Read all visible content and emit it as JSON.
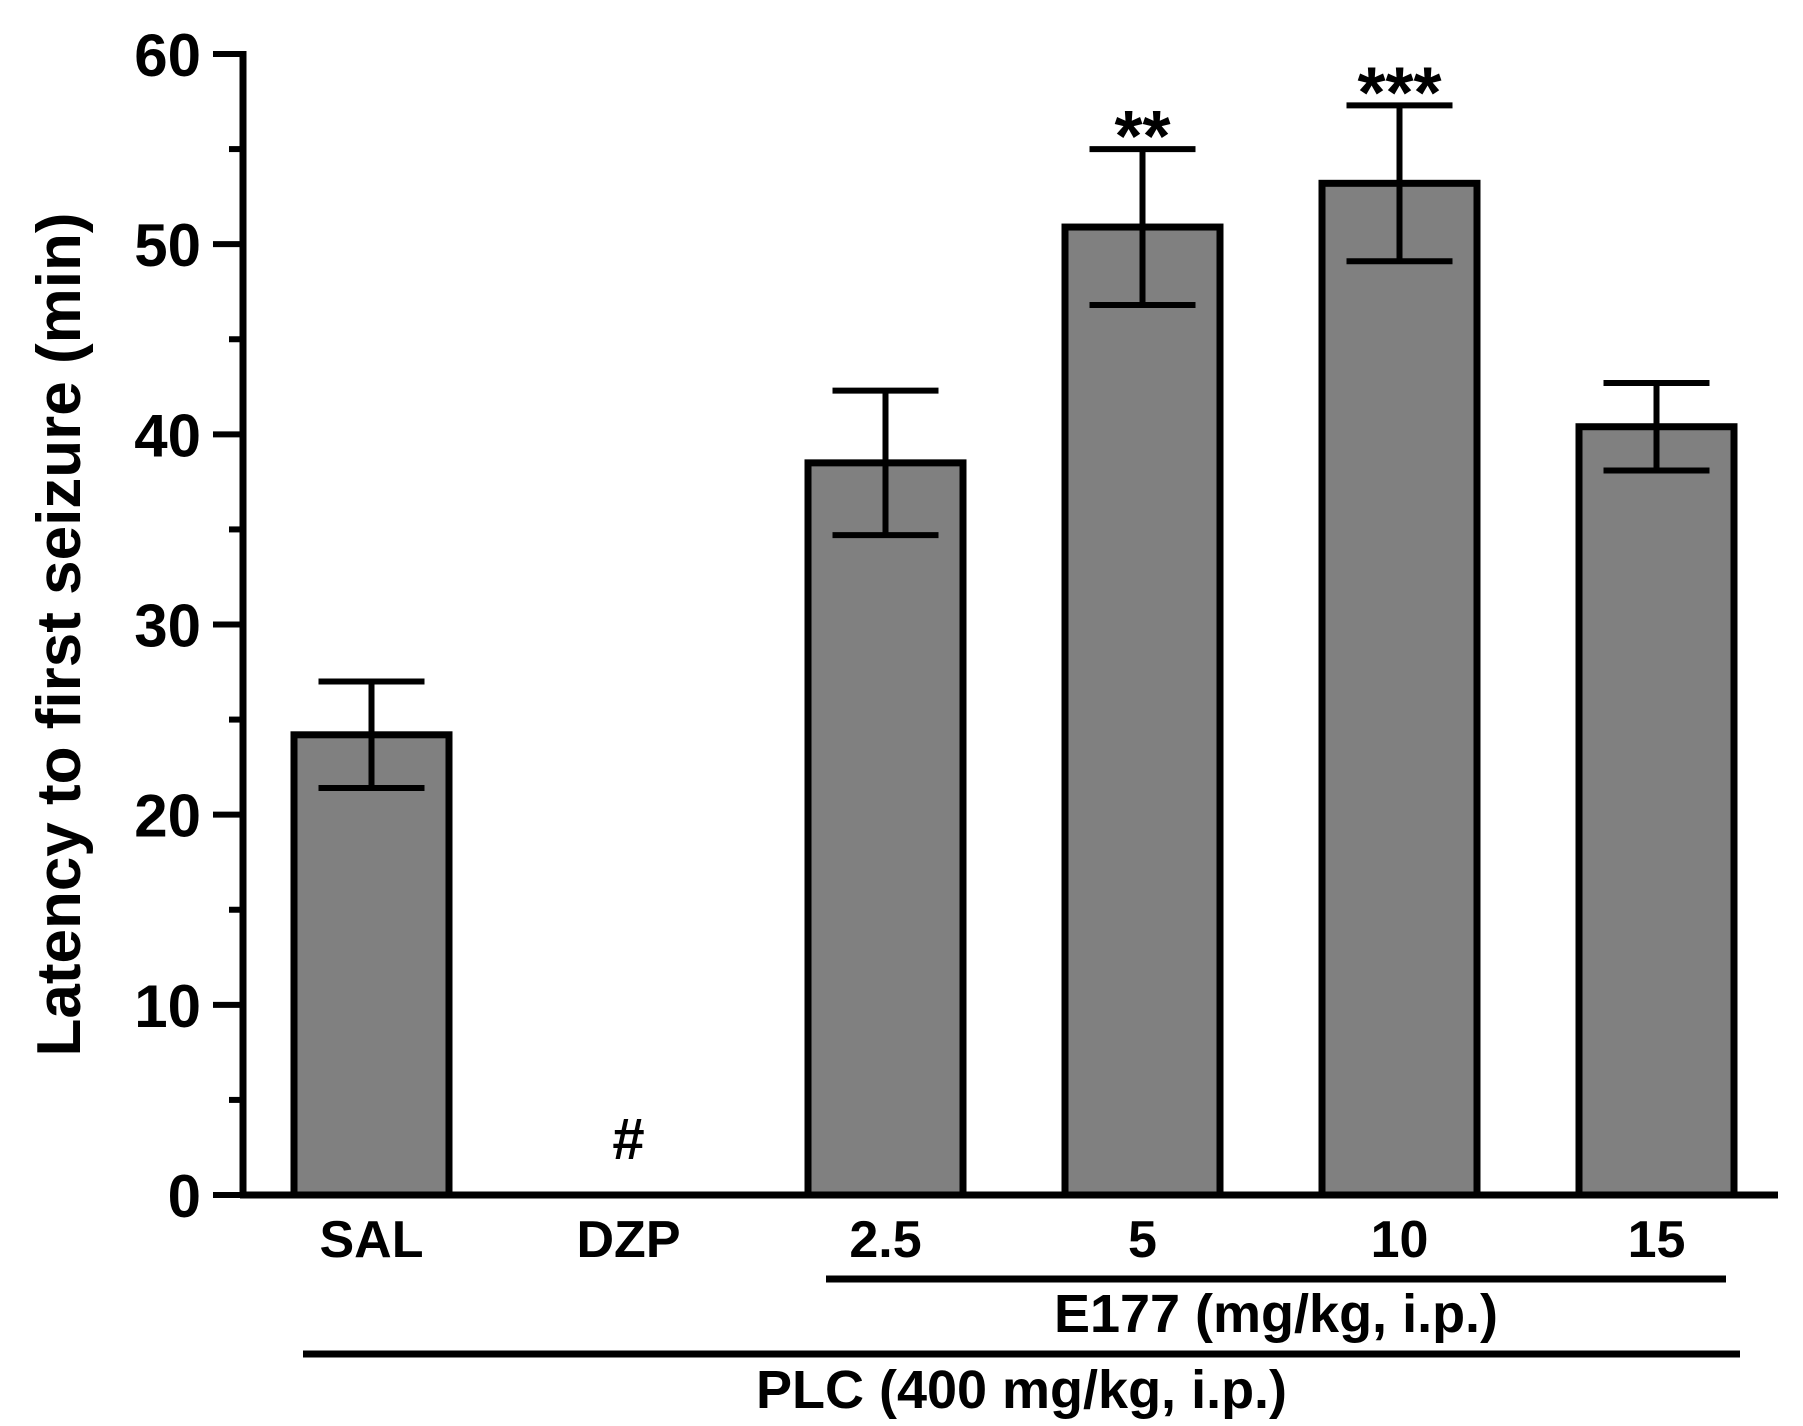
{
  "chart_data": {
    "type": "bar",
    "title": "",
    "xlabel": "",
    "ylabel": "Latency to first seizure (min)",
    "ylim": [
      0,
      60
    ],
    "yticks_major": [
      0,
      10,
      20,
      30,
      40,
      50,
      60
    ],
    "ytick_labels": [
      "0",
      "10",
      "20",
      "30",
      "40",
      "50",
      "60"
    ],
    "yticks_minor": [
      5,
      15,
      25,
      35,
      45,
      55
    ],
    "grid": false,
    "categories": [
      "SAL",
      "DZP",
      "2.5",
      "5",
      "10",
      "15"
    ],
    "values": [
      24.2,
      0,
      38.5,
      50.9,
      53.2,
      40.4
    ],
    "errors": [
      2.8,
      0,
      3.8,
      4.1,
      4.1,
      2.3
    ],
    "annotations": [
      "",
      "#",
      "",
      "**",
      "***",
      ""
    ],
    "group_labels": [
      {
        "label": "E177 (mg/kg, i.p.)",
        "from": 2,
        "to": 5
      },
      {
        "label": "PLC (400 mg/kg, i.p.)",
        "from": 0,
        "to": 5
      }
    ],
    "colors": {
      "bar_fill": "#808080",
      "bar_stroke": "#000000",
      "axis": "#000000"
    }
  }
}
